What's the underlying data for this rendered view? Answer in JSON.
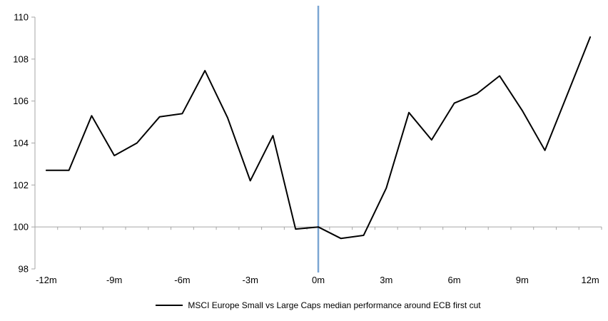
{
  "chart_data": {
    "type": "line",
    "categories": [
      "-12m",
      "-11m",
      "-10m",
      "-9m",
      "-8m",
      "-7m",
      "-6m",
      "-5m",
      "-4m",
      "-3m",
      "-2m",
      "-1m",
      "0m",
      "1m",
      "2m",
      "3m",
      "4m",
      "5m",
      "6m",
      "7m",
      "8m",
      "9m",
      "10m",
      "11m",
      "12m"
    ],
    "series": [
      {
        "name": "MSCI Europe Small vs Large Caps median performance around ECB first cut",
        "color": "#000000",
        "values": [
          102.7,
          102.7,
          105.3,
          103.4,
          104.0,
          105.25,
          105.4,
          107.45,
          105.2,
          102.2,
          104.35,
          99.9,
          100.0,
          99.45,
          99.6,
          101.85,
          105.45,
          104.15,
          105.9,
          106.35,
          107.2,
          105.55,
          103.65,
          106.35,
          109.05
        ]
      }
    ],
    "title": "",
    "xlabel": "",
    "ylabel": "",
    "ylim": [
      98,
      110
    ],
    "yticks": [
      110,
      108,
      106,
      104,
      102,
      100,
      98
    ],
    "xtick_labels": [
      "-12m",
      "-9m",
      "-6m",
      "-3m",
      "0m",
      "3m",
      "6m",
      "9m",
      "12m"
    ],
    "xtick_every": 3,
    "baseline_value": 100,
    "grid": "baseline-only",
    "event_line": {
      "at_category": "0m",
      "color": "#7CA6D3"
    },
    "axis_color": "#A6A6A6",
    "tick_label_color": "#000000",
    "legend_position": "bottom-center"
  }
}
